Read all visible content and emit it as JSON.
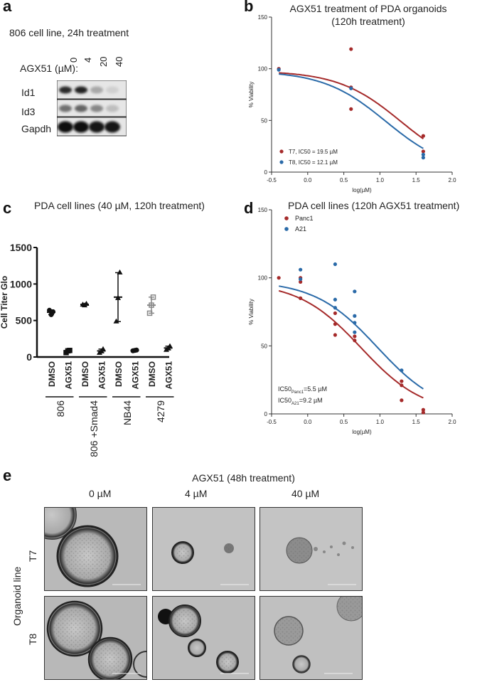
{
  "panel_labels": [
    "a",
    "b",
    "c",
    "d",
    "e"
  ],
  "panel_a": {
    "caption": "806 cell line, 24h treatment",
    "dose_label": "AGX51 (µM):",
    "doses": [
      "0",
      "4",
      "20",
      "40"
    ],
    "bands": [
      "Id1",
      "Id3",
      "Gapdh"
    ],
    "band_intensity": [
      [
        0.85,
        0.9,
        0.3,
        0.12
      ],
      [
        0.55,
        0.6,
        0.45,
        0.2
      ],
      [
        1.0,
        1.0,
        0.95,
        0.95
      ]
    ]
  },
  "panel_b": {
    "chart_data": {
      "type": "scatter",
      "title": "AGX51 treatment of PDA organoids",
      "subtitle": "(120h treatment)",
      "xlabel": "log(µM)",
      "ylabel": "% Viability",
      "xlim": [
        -0.5,
        2.0
      ],
      "ylim": [
        0,
        150
      ],
      "xticks": [
        "-0.5",
        "0.0",
        "0.5",
        "1.0",
        "1.5",
        "2.0"
      ],
      "yticks": [
        "0",
        "50",
        "100",
        "150"
      ],
      "legend_position": "bottom-left",
      "series": [
        {
          "name": "T7, IC50 = 19.5 µM",
          "color": "#a52a2a",
          "ic50": 19.5,
          "top": 98,
          "hill": 1.0,
          "points": [
            [
              -0.4,
              100
            ],
            [
              0.6,
              119
            ],
            [
              0.6,
              82
            ],
            [
              0.6,
              61
            ],
            [
              1.6,
              35
            ],
            [
              1.6,
              20
            ]
          ]
        },
        {
          "name": "T8, IC50 = 12.1 µM",
          "color": "#2a6aa8",
          "ic50": 12.1,
          "top": 98,
          "hill": 1.0,
          "points": [
            [
              -0.4,
              99
            ],
            [
              0.6,
              81
            ],
            [
              1.6,
              17
            ],
            [
              1.6,
              14
            ]
          ]
        }
      ]
    }
  },
  "panel_c": {
    "chart_data": {
      "type": "scatter",
      "title": "PDA cell lines (40 µM, 120h treatment)",
      "ylabel": "Cell Titer Glo",
      "ylim": [
        0,
        1500
      ],
      "yticks": [
        "0",
        "500",
        "1000",
        "1500"
      ],
      "categories": [
        "DMSO",
        "AGX51",
        "DMSO",
        "AGX51",
        "DMSO",
        "AGX51",
        "DMSO",
        "AGX51"
      ],
      "groups": [
        "806",
        "806 +Smad4",
        "NB44",
        "4279"
      ],
      "markers": [
        "circle",
        "square",
        "triangle",
        "triangle",
        "triangle",
        "circle",
        "square",
        "triangle"
      ],
      "values": [
        [
          640,
          580,
          620
        ],
        [
          60,
          85,
          90
        ],
        [
          720,
          710,
          730
        ],
        [
          60,
          80,
          110
        ],
        [
          490,
          810,
          1160
        ],
        [
          85,
          90,
          95
        ],
        [
          600,
          710,
          820
        ],
        [
          100,
          120,
          150
        ]
      ]
    }
  },
  "panel_d": {
    "chart_data": {
      "type": "scatter",
      "title": "PDA cell lines (120h AGX51 treatment)",
      "xlabel": "log(µM)",
      "ylabel": "% Viability",
      "xlim": [
        -0.5,
        2.0
      ],
      "ylim": [
        0,
        150
      ],
      "xticks": [
        "-0.5",
        "0.0",
        "0.5",
        "1.0",
        "1.5",
        "2.0"
      ],
      "yticks": [
        "0",
        "50",
        "100",
        "150"
      ],
      "legend_position": "top-left",
      "annotation_ic50": [
        {
          "prefix": "IC50",
          "sub": "Panc1",
          "value": "=5.5 µM",
          "ic50": 5.5
        },
        {
          "prefix": "IC50",
          "sub": "A21",
          "value": "=9.2 µM",
          "ic50": 9.2
        }
      ],
      "series": [
        {
          "name": "Panc1",
          "color": "#a52a2a",
          "ic50": 5.5,
          "top": 97,
          "hill": 1.0,
          "points": [
            [
              -0.4,
              100
            ],
            [
              -0.1,
              100
            ],
            [
              -0.1,
              97
            ],
            [
              -0.1,
              85
            ],
            [
              0.38,
              74
            ],
            [
              0.38,
              66
            ],
            [
              0.38,
              58
            ],
            [
              0.65,
              57
            ],
            [
              0.65,
              54
            ],
            [
              1.3,
              24
            ],
            [
              1.3,
              21
            ],
            [
              1.3,
              10
            ],
            [
              1.6,
              3
            ],
            [
              1.6,
              1
            ]
          ]
        },
        {
          "name": "A21",
          "color": "#2a6aa8",
          "ic50": 9.2,
          "top": 98,
          "hill": 1.0,
          "points": [
            [
              -0.1,
              106
            ],
            [
              -0.1,
              99
            ],
            [
              0.38,
              110
            ],
            [
              0.38,
              84
            ],
            [
              0.38,
              78
            ],
            [
              0.65,
              90
            ],
            [
              0.65,
              72
            ],
            [
              0.65,
              67
            ],
            [
              0.65,
              60
            ],
            [
              1.3,
              32
            ]
          ]
        }
      ]
    }
  },
  "panel_e": {
    "title": "AGX51 (48h treatment)",
    "columns": [
      "0 µM",
      "4 µM",
      "40 µM"
    ],
    "row_group_label": "Organoid line",
    "rows": [
      "T7",
      "T8"
    ]
  }
}
